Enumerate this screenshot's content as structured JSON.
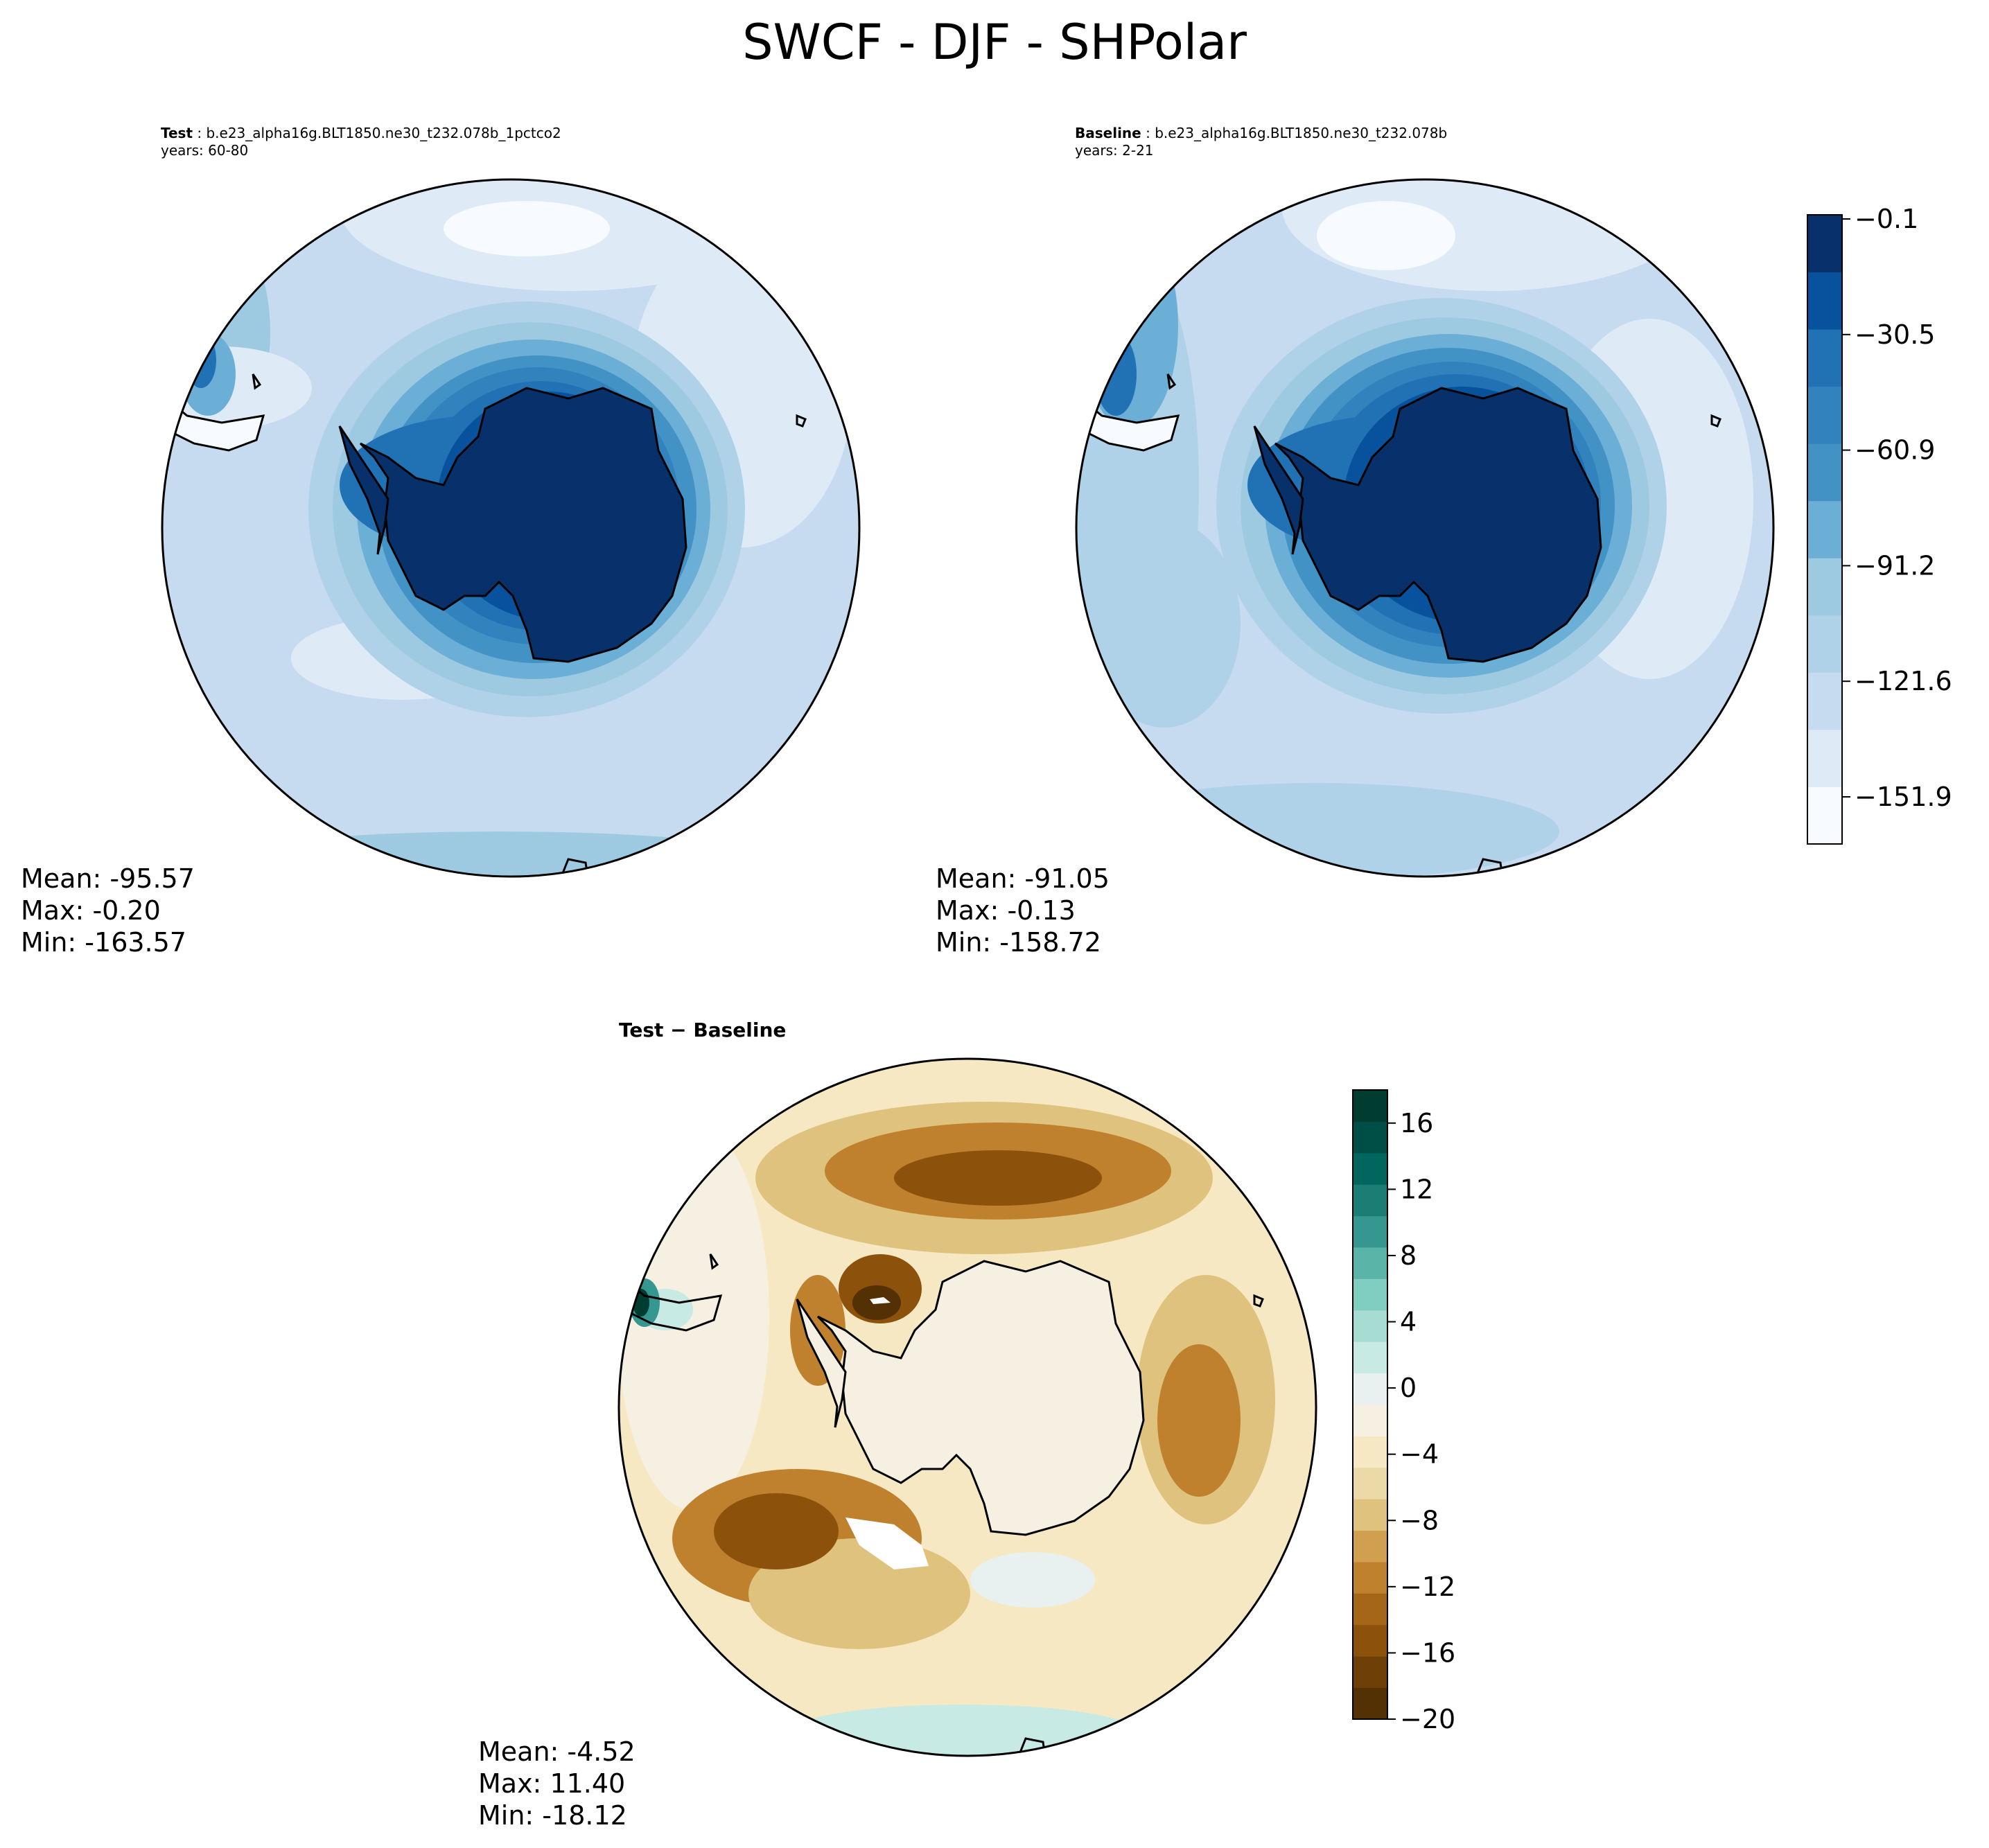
{
  "figure": {
    "title": "SWCF - DJF - SHPolar"
  },
  "chart_data": [
    {
      "type": "heatmap",
      "panel": "test",
      "label": "Test",
      "case": "b.e23_alpha16g.BLT1850.ne30_t232.078b_1pctco2",
      "years": "years: 60-80",
      "stats": {
        "mean": "Mean: -95.57",
        "max": "Max: -0.20",
        "min": "Min: -163.57"
      },
      "colormap": "Blues_r"
    },
    {
      "type": "heatmap",
      "panel": "baseline",
      "label": "Baseline",
      "case": "b.e23_alpha16g.BLT1850.ne30_t232.078b",
      "years": "years: 2-21",
      "stats": {
        "mean": "Mean: -91.05",
        "max": "Max: -0.13",
        "min": "Min: -158.72"
      },
      "colormap": "Blues_r",
      "colorbar": {
        "ticks": [
          "−0.1",
          "−30.5",
          "−60.9",
          "−91.2",
          "−121.6",
          "−151.9"
        ],
        "levels": 11,
        "colors": [
          "#f7fbff",
          "#deebf7",
          "#c6dbef",
          "#b0d2e8",
          "#9ecae1",
          "#6baed6",
          "#4292c6",
          "#3182bd",
          "#2171b5",
          "#08519c",
          "#08306b"
        ]
      }
    },
    {
      "type": "heatmap",
      "panel": "difference",
      "label": "Test − Baseline",
      "stats": {
        "mean": "Mean: -4.52",
        "max": "Max: 11.40",
        "min": "Min: -18.12"
      },
      "colormap": "BrBG",
      "colorbar": {
        "range": [
          -20,
          18
        ],
        "ticks": [
          "16",
          "12",
          "8",
          "4",
          "0",
          "−4",
          "−8",
          "−12",
          "−16",
          "−20"
        ],
        "tick_values": [
          16,
          12,
          8,
          4,
          0,
          -4,
          -8,
          -12,
          -16,
          -20
        ],
        "colors": [
          "#543005",
          "#6f3f08",
          "#8c510a",
          "#a6661a",
          "#bf812d",
          "#d0a050",
          "#dfc27d",
          "#ecd9a8",
          "#f6e8c3",
          "#f5f0e1",
          "#e8f1ef",
          "#c7eae5",
          "#a6dcd2",
          "#80cdc1",
          "#5ab4a8",
          "#35978f",
          "#1c7d74",
          "#01665e",
          "#004f47",
          "#003c30"
        ]
      }
    }
  ]
}
